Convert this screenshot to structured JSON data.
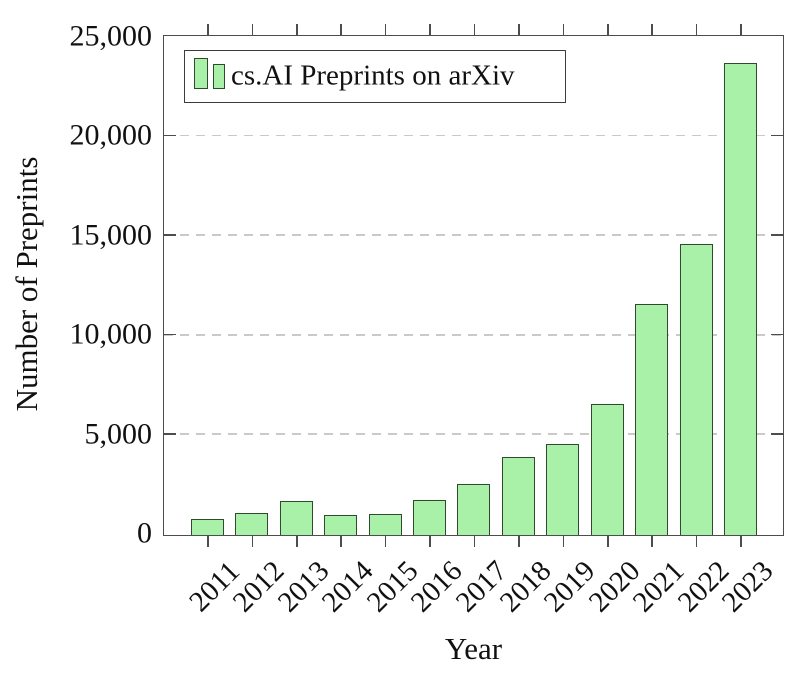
{
  "colors": {
    "background": "#ffffff",
    "bar_fill": "#a9f0a9",
    "bar_border": "#2f4a2f",
    "axis": "#4d4d4d",
    "grid": "#c9c9c9",
    "text": "#111111"
  },
  "legend": {
    "label": "cs.AI Preprints on arXiv"
  },
  "chart_data": {
    "type": "bar",
    "title": "",
    "xlabel": "Year",
    "ylabel": "Number of Preprints",
    "categories": [
      "2011",
      "2012",
      "2013",
      "2014",
      "2015",
      "2016",
      "2017",
      "2018",
      "2019",
      "2020",
      "2021",
      "2022",
      "2023"
    ],
    "values": [
      800,
      1100,
      1700,
      1000,
      1050,
      1750,
      2550,
      3900,
      4550,
      6600,
      11600,
      14600,
      23700
    ],
    "ylim": [
      0,
      25000
    ],
    "yticks": [
      {
        "value": 0,
        "label": "0"
      },
      {
        "value": 5000,
        "label": "5,000"
      },
      {
        "value": 10000,
        "label": "10,000"
      },
      {
        "value": 15000,
        "label": "15,000"
      },
      {
        "value": 20000,
        "label": "20,000"
      },
      {
        "value": 25000,
        "label": "25,000"
      }
    ],
    "gridline_values": [
      5000,
      10000,
      15000,
      20000
    ],
    "grid_style": "dashed-horizontal",
    "legend_position": "top-left-inside",
    "tick_style": "outside-x-inside-y"
  }
}
